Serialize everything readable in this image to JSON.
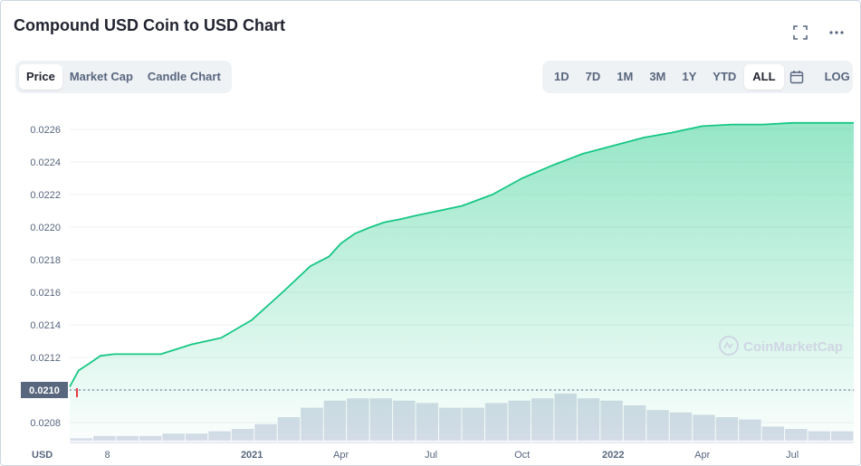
{
  "header": {
    "title": "Compound USD Coin to USD Chart",
    "fullscreen_icon": "expand-icon",
    "more_icon": "more-horizontal-icon"
  },
  "view_tabs": [
    {
      "label": "Price",
      "active": true
    },
    {
      "label": "Market Cap",
      "active": false
    },
    {
      "label": "Candle Chart",
      "active": false
    }
  ],
  "range_tabs": [
    {
      "label": "1D",
      "active": false
    },
    {
      "label": "7D",
      "active": false
    },
    {
      "label": "1M",
      "active": false
    },
    {
      "label": "3M",
      "active": false
    },
    {
      "label": "1Y",
      "active": false
    },
    {
      "label": "YTD",
      "active": false
    },
    {
      "label": "ALL",
      "active": true
    }
  ],
  "calendar_icon": "calendar-icon",
  "log_label": "LOG",
  "watermark": "CoinMarketCap",
  "currency_label": "USD",
  "current_price_label": "0.0210",
  "colors": {
    "line": "#16c784",
    "fill_top": "#16c784",
    "volume": "#cfd6e4",
    "down": "#ea3943",
    "grid": "#eff2f5",
    "axis_text": "#58667e"
  },
  "chart_data": {
    "type": "area",
    "ylabel": "USD",
    "ylim": [
      0.0207,
      0.0227
    ],
    "y_ticks": [
      "0.0208",
      "0.0210",
      "0.0212",
      "0.0214",
      "0.0216",
      "0.0218",
      "0.0220",
      "0.0222",
      "0.0224",
      "0.0226"
    ],
    "x_ticks": [
      "8",
      "2021",
      "Apr",
      "Jul",
      "Oct",
      "2022",
      "Apr",
      "Jul"
    ],
    "x": [
      "2020-07-01",
      "2020-07-10",
      "2020-07-20",
      "2020-08-01",
      "2020-08-15",
      "2020-09-01",
      "2020-10-01",
      "2020-11-01",
      "2020-12-01",
      "2021-01-01",
      "2021-02-01",
      "2021-03-01",
      "2021-03-20",
      "2021-04-01",
      "2021-04-15",
      "2021-05-01",
      "2021-05-15",
      "2021-06-01",
      "2021-06-15",
      "2021-07-01",
      "2021-08-01",
      "2021-09-01",
      "2021-10-01",
      "2021-11-01",
      "2021-12-01",
      "2022-01-01",
      "2022-02-01",
      "2022-03-01",
      "2022-04-01",
      "2022-05-01",
      "2022-06-01",
      "2022-07-01",
      "2022-08-01",
      "2022-09-01"
    ],
    "series": [
      {
        "values": [
          0.02102,
          0.02112,
          0.02116,
          0.02121,
          0.02122,
          0.02122,
          0.02122,
          0.02128,
          0.02132,
          0.02143,
          0.0216,
          0.02176,
          0.02182,
          0.0219,
          0.02196,
          0.022,
          0.02203,
          0.02205,
          0.02207,
          0.02209,
          0.02213,
          0.0222,
          0.0223,
          0.02238,
          0.02245,
          0.0225,
          0.02255,
          0.02258,
          0.02262,
          0.02263,
          0.02263,
          0.02264,
          0.02264,
          0.02264
        ]
      }
    ],
    "volume": [
      1,
      2,
      2,
      2,
      3,
      3,
      4,
      5,
      7,
      10,
      14,
      17,
      18,
      18,
      17,
      16,
      14,
      14,
      16,
      17,
      18,
      20,
      18,
      17,
      15,
      13,
      12,
      11,
      10,
      9,
      6,
      5,
      4,
      4
    ],
    "price_marker": 0.021
  }
}
